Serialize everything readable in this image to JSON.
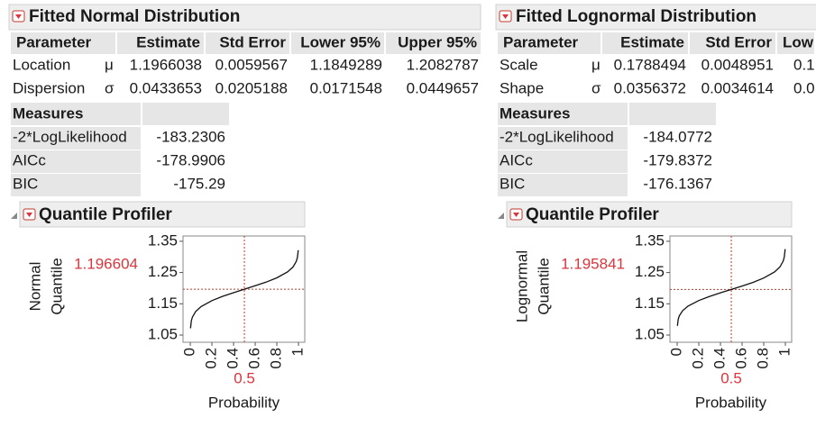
{
  "panels": [
    {
      "title": "Fitted Normal Distribution",
      "parameters": {
        "columns": [
          "Parameter",
          "Estimate",
          "Std Error",
          "Lower 95%",
          "Upper 95%"
        ],
        "rows": [
          {
            "name": "Location",
            "symbol": "μ",
            "cells": [
              "1.1966038",
              "0.0059567",
              "1.1849289",
              "1.2082787"
            ]
          },
          {
            "name": "Dispersion",
            "symbol": "σ",
            "cells": [
              "0.0433653",
              "0.0205188",
              "0.0171548",
              "0.0449657"
            ]
          }
        ]
      },
      "measures": {
        "title": "Measures",
        "rows": [
          {
            "label": "-2*LogLikelihood",
            "value": "-183.2306"
          },
          {
            "label": "AICc",
            "value": "-178.9906"
          },
          {
            "label": "BIC",
            "value": "-175.29"
          }
        ]
      },
      "profiler": {
        "title": "Quantile Profiler",
        "y_label": [
          "Normal",
          "Quantile"
        ],
        "x_label": "Probability",
        "current_x": 0.5,
        "current_y": 1.196604,
        "xlim": [
          -0.067,
          1.058
        ],
        "ylim": [
          1.027,
          1.367
        ],
        "xticks": [
          0,
          0.2,
          0.4,
          0.6,
          0.8,
          1
        ],
        "yticks": [
          1.05,
          1.15,
          1.25,
          1.35
        ],
        "curve": {
          "x": [
            0.002,
            0.01,
            0.02,
            0.05,
            0.1,
            0.2,
            0.3,
            0.4,
            0.5,
            0.6,
            0.7,
            0.8,
            0.9,
            0.95,
            0.98,
            0.99,
            0.998
          ],
          "y": [
            1.0718,
            1.0957,
            1.1075,
            1.1253,
            1.141,
            1.1601,
            1.1739,
            1.1856,
            1.1966,
            1.2076,
            1.2193,
            1.2331,
            1.2522,
            1.2679,
            1.2857,
            1.2975,
            1.3214
          ]
        }
      }
    },
    {
      "title": "Fitted Lognormal Distribution",
      "parameters": {
        "columns": [
          "Parameter",
          "Estimate",
          "Std Error",
          "Low"
        ],
        "rows": [
          {
            "name": "Scale",
            "symbol": "μ",
            "cells": [
              "0.1788494",
              "0.0048951",
              "0.1"
            ]
          },
          {
            "name": "Shape",
            "symbol": "σ",
            "cells": [
              "0.0356372",
              "0.0034614",
              "0.0"
            ]
          }
        ]
      },
      "measures": {
        "title": "Measures",
        "rows": [
          {
            "label": "-2*LogLikelihood",
            "value": "-184.0772"
          },
          {
            "label": "AICc",
            "value": "-179.8372"
          },
          {
            "label": "BIC",
            "value": "-176.1367"
          }
        ]
      },
      "profiler": {
        "title": "Quantile Profiler",
        "y_label": [
          "Lognormal",
          "Quantile"
        ],
        "x_label": "Probability",
        "current_x": 0.5,
        "current_y": 1.195841,
        "xlim": [
          -0.067,
          1.058
        ],
        "ylim": [
          1.027,
          1.367
        ],
        "xticks": [
          0,
          0.2,
          0.4,
          0.6,
          0.8,
          1
        ],
        "yticks": [
          1.05,
          1.15,
          1.25,
          1.35
        ],
        "curve": {
          "x": [
            0.002,
            0.01,
            0.02,
            0.05,
            0.1,
            0.2,
            0.3,
            0.4,
            0.5,
            0.6,
            0.7,
            0.8,
            0.9,
            0.95,
            0.98,
            0.99,
            0.998
          ],
          "y": [
            1.0793,
            1.1007,
            1.1114,
            1.1278,
            1.1425,
            1.1605,
            1.1737,
            1.1851,
            1.1958,
            1.2067,
            1.2184,
            1.2323,
            1.2517,
            1.268,
            1.2867,
            1.2992,
            1.325
          ]
        }
      }
    }
  ]
}
